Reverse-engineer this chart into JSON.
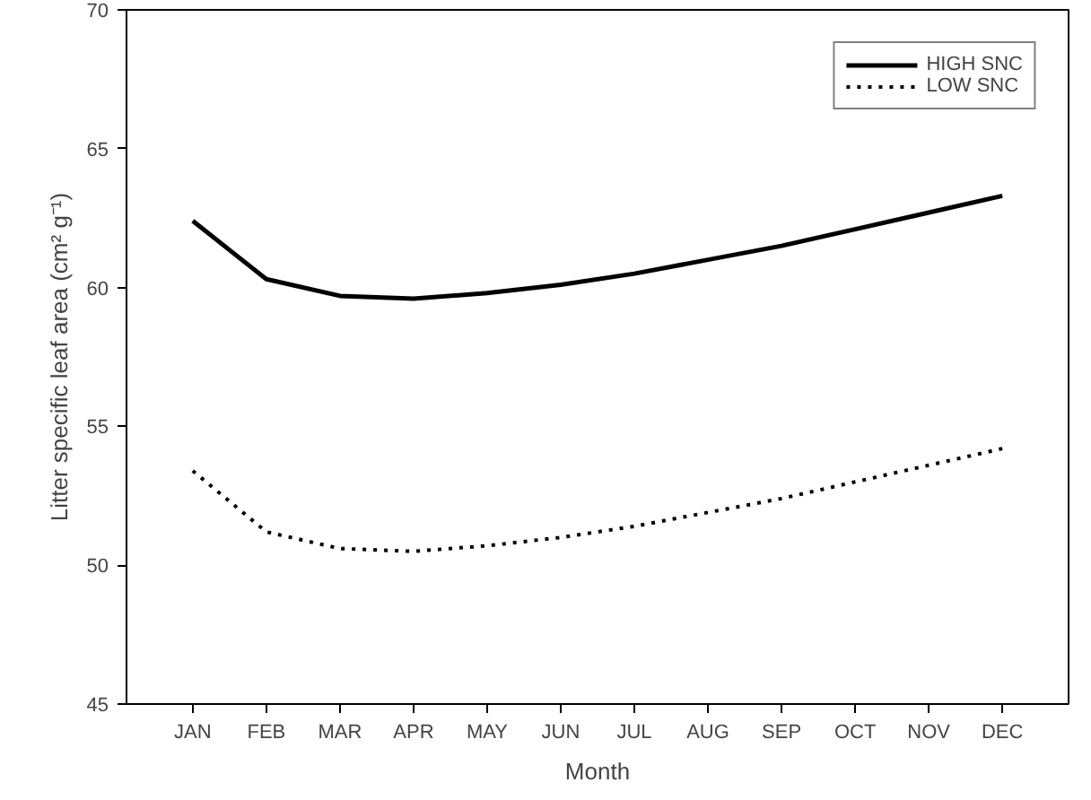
{
  "chart_data": {
    "type": "line",
    "xlabel": "Month",
    "ylabel": "Litter specific leaf area (cm² g⁻¹)",
    "categories": [
      "JAN",
      "FEB",
      "MAR",
      "APR",
      "MAY",
      "JUN",
      "JUL",
      "AUG",
      "SEP",
      "OCT",
      "NOV",
      "DEC"
    ],
    "series": [
      {
        "name": "HIGH SNC",
        "color": "#000000",
        "line_style": "solid",
        "values": [
          62.4,
          60.3,
          59.7,
          59.6,
          59.8,
          60.1,
          60.5,
          61.0,
          61.5,
          62.1,
          62.7,
          63.3
        ]
      },
      {
        "name": "LOW SNC",
        "color": "#000000",
        "line_style": "dotted",
        "values": [
          53.4,
          51.2,
          50.6,
          50.5,
          50.7,
          51.0,
          51.4,
          51.9,
          52.4,
          53.0,
          53.6,
          54.2
        ]
      }
    ],
    "ylim": [
      45,
      70
    ],
    "yticks": [
      45,
      50,
      55,
      60,
      65,
      70
    ],
    "grid": false,
    "legend": "top right"
  }
}
